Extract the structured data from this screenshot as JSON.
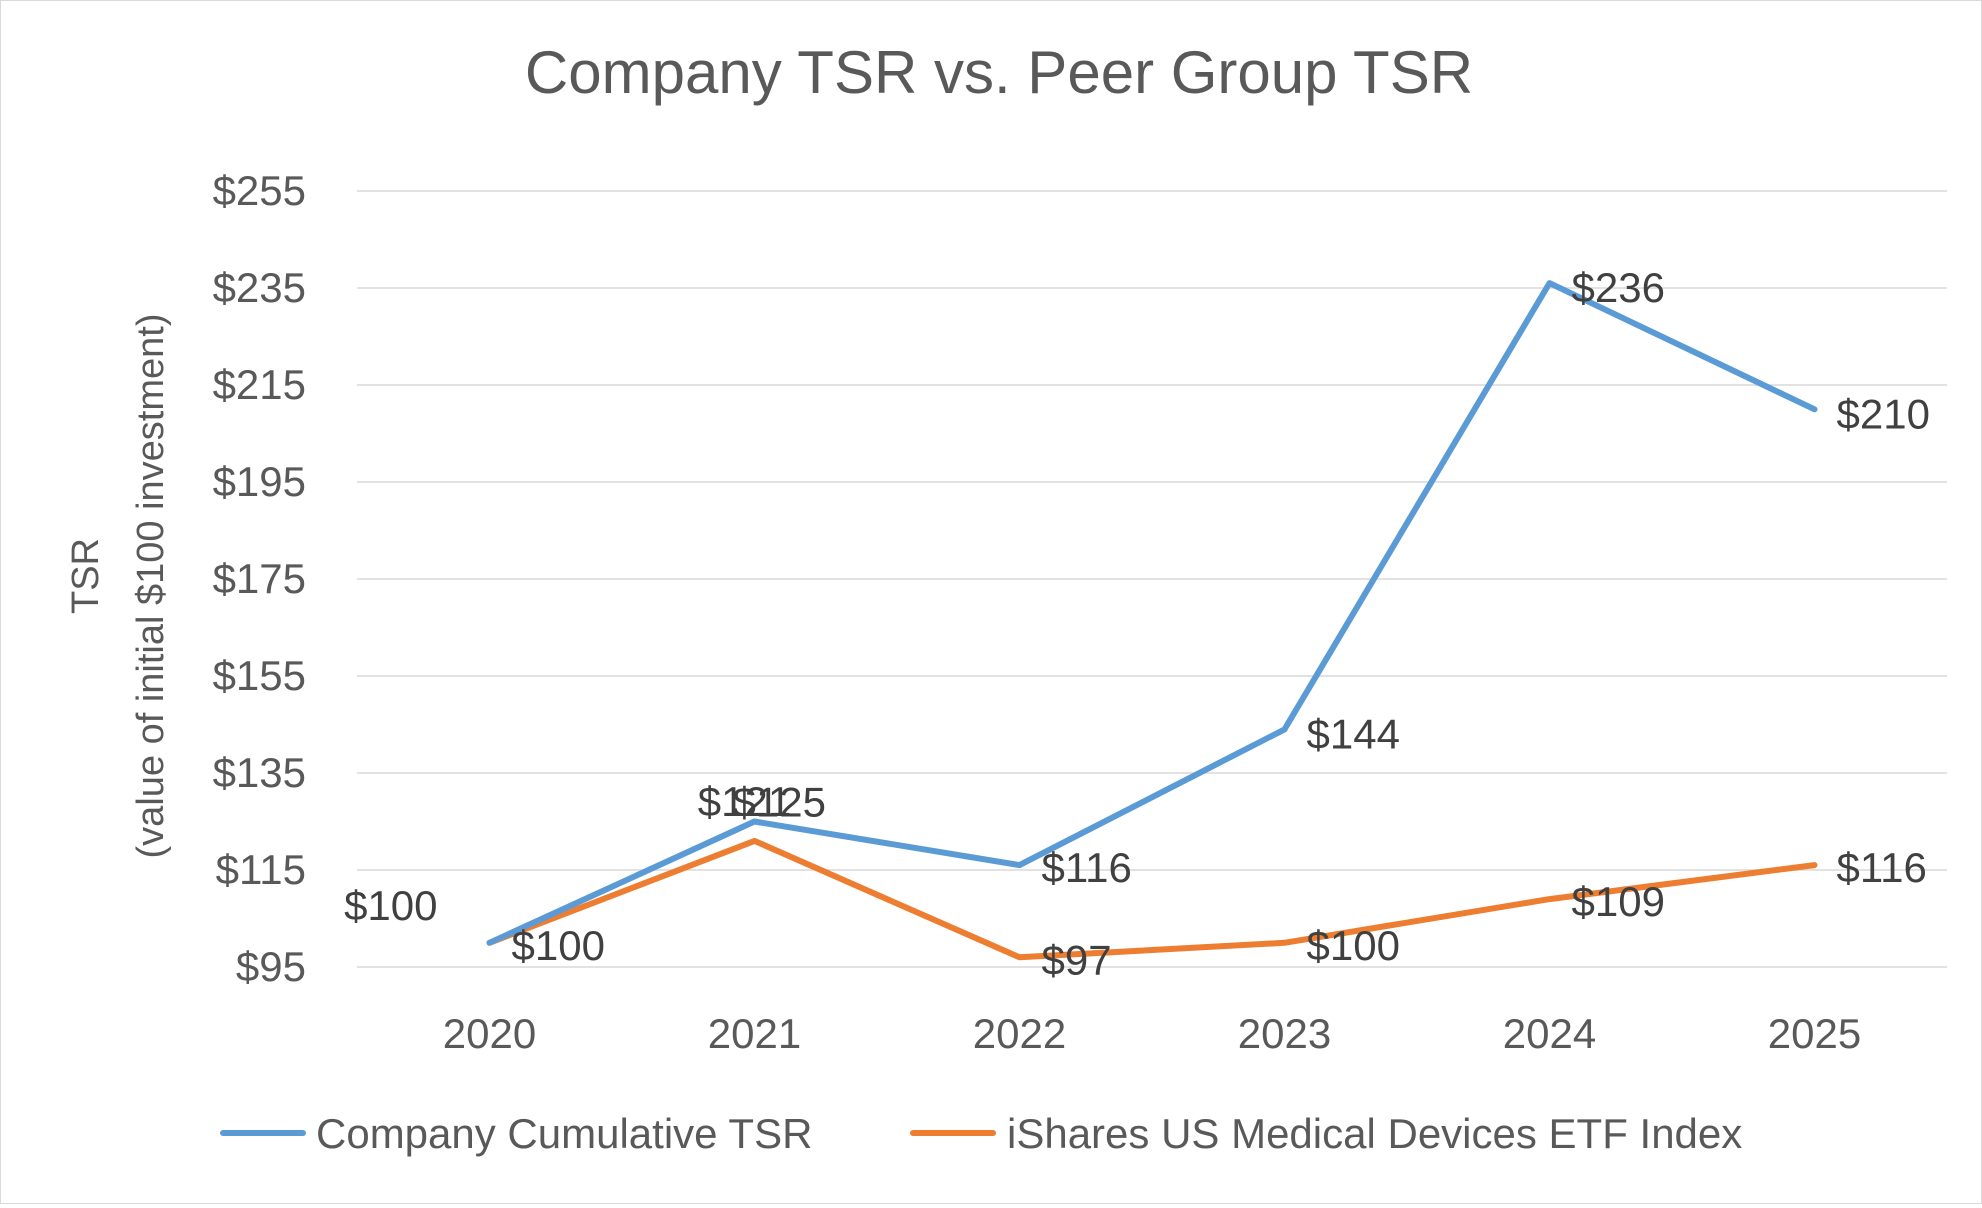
{
  "chart_data": {
    "type": "line",
    "title": "Company TSR vs. Peer Group TSR",
    "xlabel": "",
    "ylabel": "TSR",
    "ylabel_sub": "(value of initial $100 investment)",
    "categories": [
      "2020",
      "2021",
      "2022",
      "2023",
      "2024",
      "2025"
    ],
    "ylim": [
      95,
      255
    ],
    "yticks": [
      95,
      115,
      135,
      155,
      175,
      195,
      215,
      235,
      255
    ],
    "ytick_labels": [
      "$95",
      "$115",
      "$135",
      "$155",
      "$175",
      "$195",
      "$215",
      "$235",
      "$255"
    ],
    "grid": true,
    "legend_position": "bottom",
    "series": [
      {
        "name": "Company Cumulative TSR",
        "color": "#5b9bd5",
        "values": [
          100,
          125,
          116,
          144,
          236,
          210
        ],
        "labels": [
          "$100",
          "$125",
          "$116",
          "$144",
          "$236",
          "$210"
        ]
      },
      {
        "name": "iShares US Medical Devices ETF Index",
        "color": "#ed7d31",
        "values": [
          100,
          121,
          97,
          100,
          109,
          116
        ],
        "labels": [
          "$100",
          "$121",
          "$97",
          "$100",
          "$109",
          "$116"
        ]
      }
    ]
  }
}
